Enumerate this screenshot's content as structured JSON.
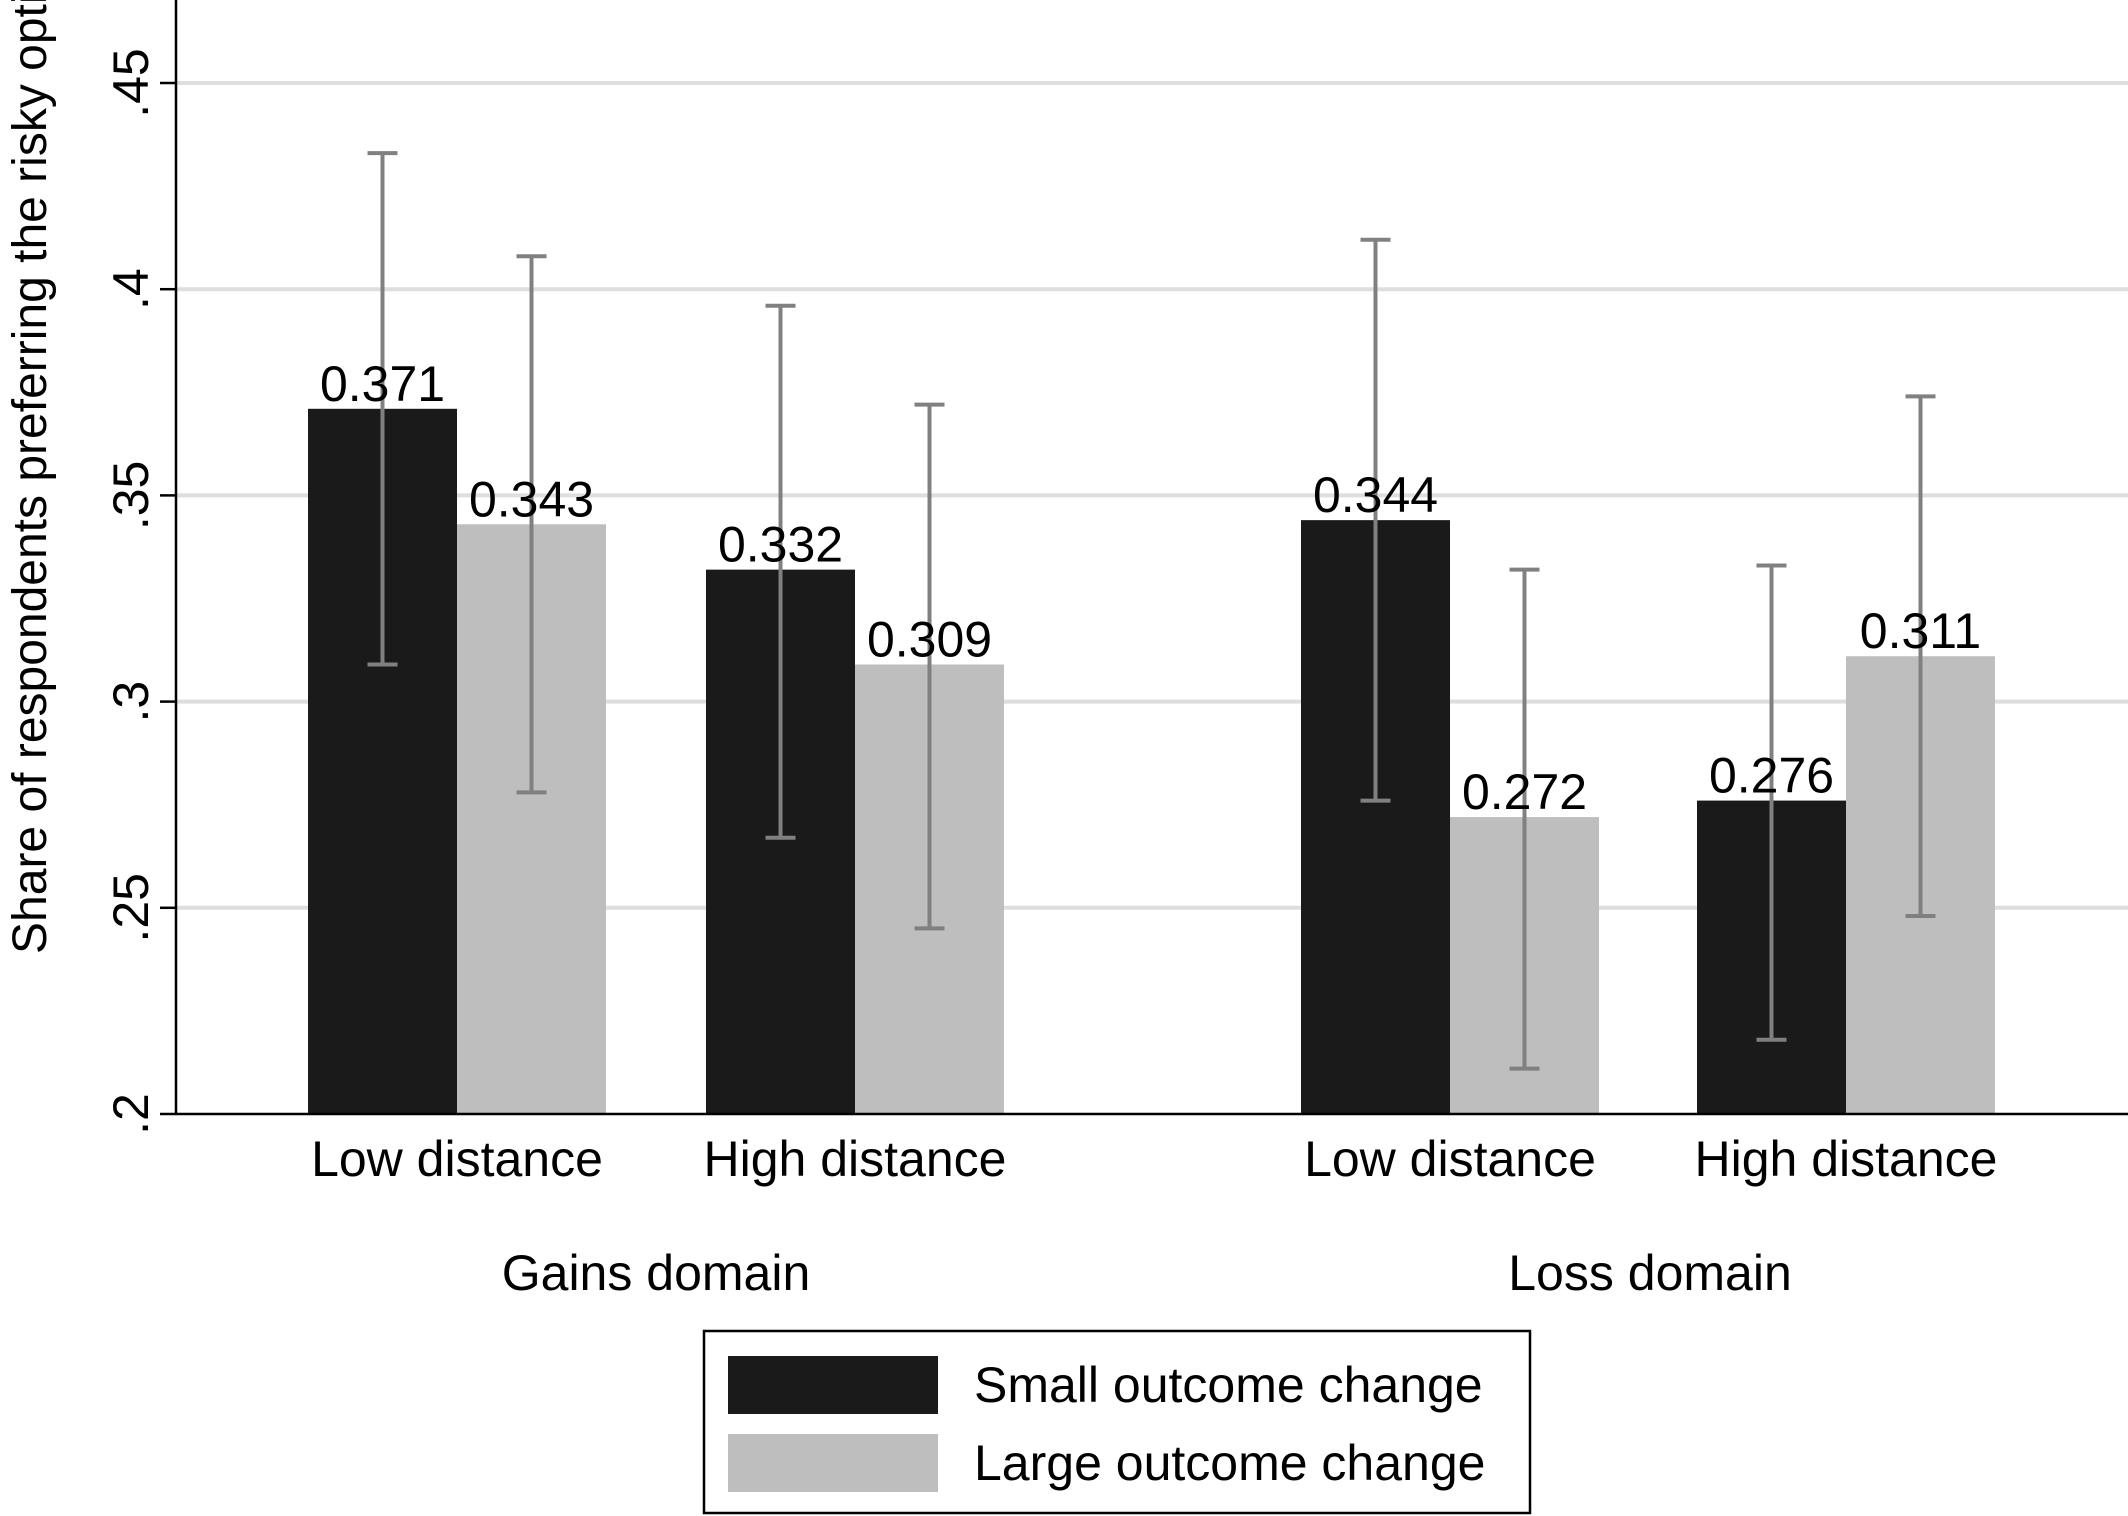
{
  "chart_data": {
    "type": "bar",
    "title": "",
    "xlabel": "",
    "ylabel": "Share of respondents preferring the risky option",
    "ylim": [
      0.2,
      0.45
    ],
    "yticks": [
      0.2,
      0.25,
      0.3,
      0.35,
      0.4,
      0.45
    ],
    "ytick_labels": [
      ".2",
      ".25",
      ".3",
      ".35",
      ".4",
      ".45"
    ],
    "grid": true,
    "legend_position": "bottom",
    "groups": [
      {
        "label": "Gains domain",
        "categories": [
          "Low distance",
          "High distance"
        ]
      },
      {
        "label": "Loss domain",
        "categories": [
          "Low distance",
          "High distance"
        ]
      }
    ],
    "categories": [
      "Low distance",
      "High distance",
      "Low distance",
      "High distance"
    ],
    "series": [
      {
        "name": "Small outcome change",
        "color": "#1a1a1a",
        "values": [
          0.371,
          0.332,
          0.344,
          0.276
        ],
        "value_labels": [
          "0.371",
          "0.332",
          "0.344",
          "0.276"
        ],
        "ci_low": [
          0.309,
          0.267,
          0.276,
          0.218
        ],
        "ci_high": [
          0.433,
          0.396,
          0.412,
          0.333
        ]
      },
      {
        "name": "Large outcome change",
        "color": "#bebebe",
        "values": [
          0.343,
          0.309,
          0.272,
          0.311
        ],
        "value_labels": [
          "0.343",
          "0.309",
          "0.272",
          "0.311"
        ],
        "ci_low": [
          0.278,
          0.245,
          0.211,
          0.248
        ],
        "ci_high": [
          0.408,
          0.372,
          0.332,
          0.374
        ]
      }
    ],
    "errorbar_color": "#808080",
    "grid_color": "#dedede"
  }
}
